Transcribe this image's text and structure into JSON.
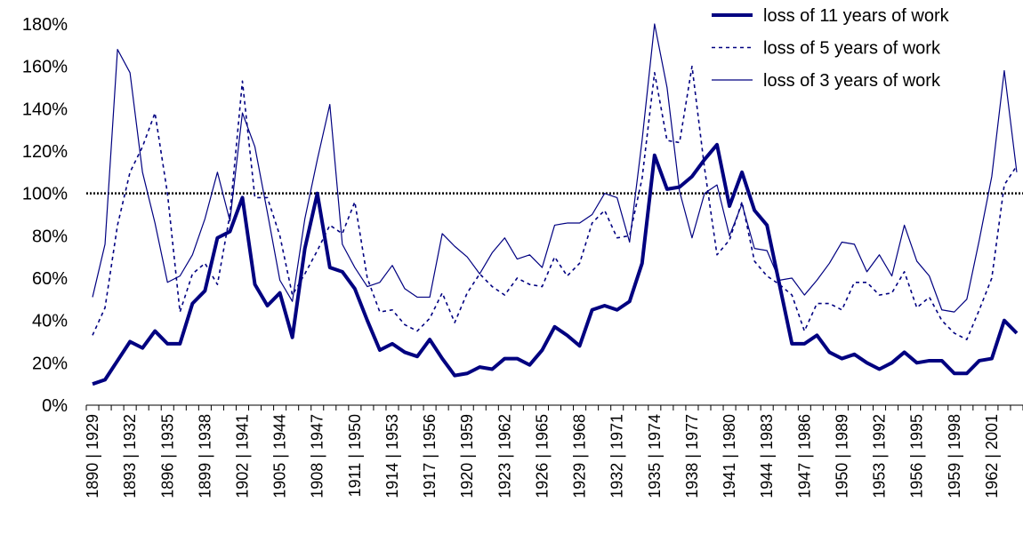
{
  "chart_data": {
    "type": "line",
    "categories": [
      "1890 | 1929",
      null,
      null,
      "1893 | 1932",
      null,
      null,
      "1896 | 1935",
      null,
      null,
      "1899 | 1938",
      null,
      null,
      "1902 | 1941",
      null,
      null,
      "1905 | 1944",
      null,
      null,
      "1908 | 1947",
      null,
      null,
      "1911 | 1950",
      null,
      null,
      "1914 | 1953",
      null,
      null,
      "1917 | 1956",
      null,
      null,
      "1920 | 1959",
      null,
      null,
      "1923 | 1962",
      null,
      null,
      "1926 | 1965",
      null,
      null,
      "1929 | 1968",
      null,
      null,
      "1932 | 1971",
      null,
      null,
      "1935 | 1974",
      null,
      null,
      "1938 | 1977",
      null,
      null,
      "1941 | 1980",
      null,
      null,
      "1944 | 1983",
      null,
      null,
      "1947 | 1986",
      null,
      null,
      "1950 | 1989",
      null,
      null,
      "1953 | 1992",
      null,
      null,
      "1956 | 1995",
      null,
      null,
      "1959 | 1998",
      null,
      null,
      "1962 | 2001",
      null,
      null
    ],
    "series": [
      {
        "name": "loss of 11 years of work",
        "color": "#000080",
        "line_width": 4,
        "dash": "solid",
        "values": [
          10,
          12,
          21,
          30,
          27,
          35,
          29,
          29,
          48,
          54,
          79,
          82,
          98,
          57,
          47,
          53,
          32,
          74,
          100,
          65,
          63,
          55,
          40,
          26,
          29,
          25,
          23,
          31,
          22,
          14,
          15,
          18,
          17,
          22,
          22,
          19,
          26,
          37,
          33,
          28,
          45,
          47,
          45,
          49,
          67,
          118,
          102,
          103,
          108,
          116,
          123,
          94,
          110,
          92,
          85,
          57,
          29,
          29,
          33,
          25,
          22,
          24,
          20,
          17,
          20,
          25,
          20,
          21,
          21,
          15,
          15,
          21,
          22,
          40,
          34
        ]
      },
      {
        "name": "loss of 5 years of work",
        "color": "#000080",
        "line_width": 1.6,
        "dash": "dashed",
        "values": [
          33,
          46,
          85,
          110,
          122,
          138,
          100,
          44,
          62,
          67,
          57,
          90,
          153,
          98,
          98,
          80,
          52,
          62,
          73,
          85,
          81,
          96,
          60,
          44,
          45,
          38,
          35,
          41,
          53,
          39,
          53,
          62,
          56,
          52,
          60,
          57,
          56,
          70,
          61,
          67,
          86,
          92,
          79,
          80,
          107,
          157,
          125,
          124,
          160,
          112,
          71,
          78,
          96,
          68,
          61,
          57,
          52,
          35,
          48,
          48,
          45,
          58,
          58,
          52,
          53,
          63,
          46,
          51,
          40,
          34,
          31,
          45,
          60,
          104,
          113
        ]
      },
      {
        "name": "loss of 3 years of work",
        "color": "#000080",
        "line_width": 1.2,
        "dash": "solid",
        "values": [
          51,
          76,
          168,
          157,
          110,
          86,
          58,
          61,
          71,
          88,
          110,
          87,
          138,
          122,
          91,
          59,
          49,
          88,
          116,
          142,
          76,
          65,
          56,
          58,
          66,
          55,
          51,
          51,
          81,
          75,
          70,
          62,
          72,
          79,
          69,
          71,
          65,
          85,
          86,
          86,
          90,
          100,
          98,
          77,
          125,
          180,
          150,
          101,
          79,
          100,
          104,
          80,
          95,
          74,
          73,
          59,
          60,
          52,
          59,
          67,
          77,
          76,
          63,
          71,
          61,
          85,
          68,
          61,
          45,
          44,
          50,
          78,
          108,
          158,
          110
        ]
      }
    ],
    "ylim": [
      0,
      180
    ],
    "yticks": [
      {
        "value": 0,
        "label": "0%"
      },
      {
        "value": 20,
        "label": "20%"
      },
      {
        "value": 40,
        "label": "40%"
      },
      {
        "value": 60,
        "label": "60%"
      },
      {
        "value": 80,
        "label": "80%"
      },
      {
        "value": 100,
        "label": "100%"
      },
      {
        "value": 120,
        "label": "120%"
      },
      {
        "value": 140,
        "label": "140%"
      },
      {
        "value": 160,
        "label": "160%"
      },
      {
        "value": 180,
        "label": "180%"
      }
    ],
    "reference_line": 100,
    "grid": false,
    "legend": "upper right"
  }
}
